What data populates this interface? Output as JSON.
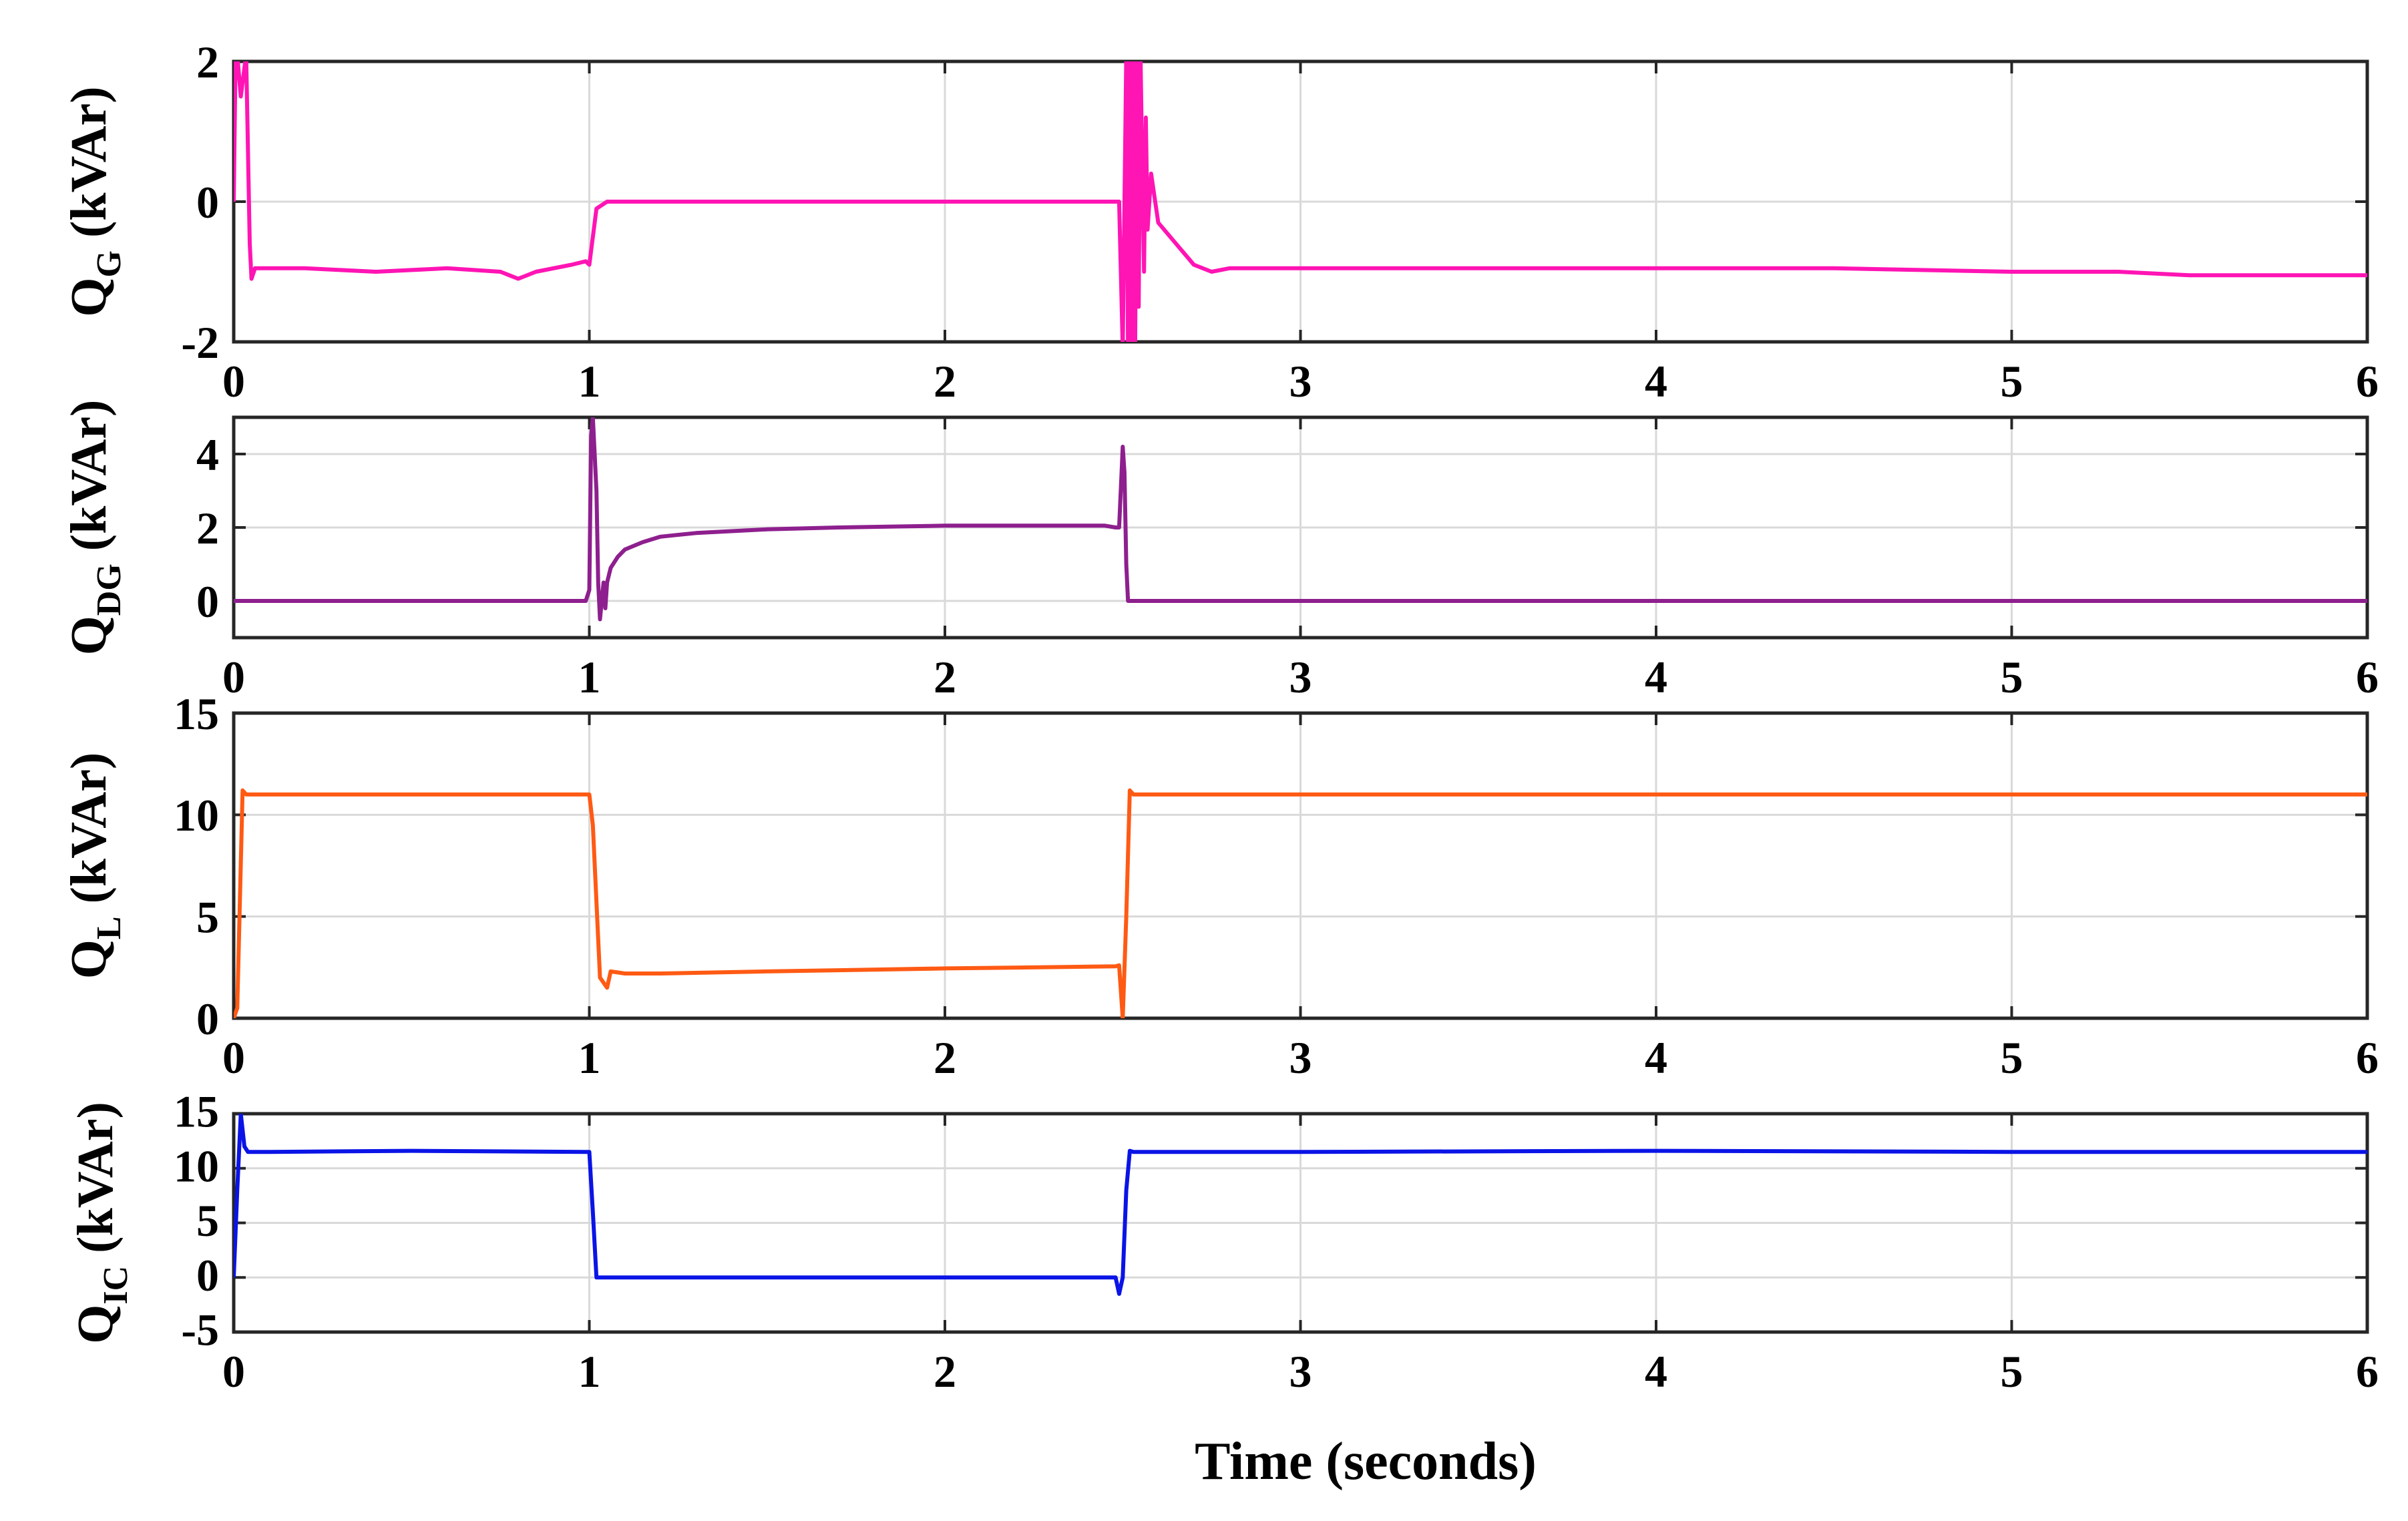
{
  "chart_data": [
    {
      "type": "line",
      "ylabel_main": "Q",
      "ylabel_sub": "G",
      "ylabel_unit": " (kVAr)",
      "xlim": [
        0,
        6
      ],
      "ylim": [
        -2,
        2
      ],
      "xticks": [
        "0",
        "1",
        "2",
        "3",
        "4",
        "5",
        "6"
      ],
      "xtick_values": [
        0,
        1,
        2,
        3,
        4,
        5,
        6
      ],
      "ytick_values": [
        -2,
        0,
        2
      ],
      "ytick_labels": [
        "-2",
        "0",
        "2"
      ],
      "color": "#ff14b4",
      "series": [
        {
          "x": [
            0,
            0.005,
            0.01,
            0.02,
            0.035,
            0.045,
            0.05,
            0.06,
            0.2,
            0.4,
            0.6,
            0.75,
            0.8,
            0.85,
            0.95,
            0.99,
            1.0,
            1.02,
            1.05,
            1.5,
            2.0,
            2.45,
            2.49,
            2.5,
            2.51,
            2.515,
            2.52,
            2.525,
            2.53,
            2.535,
            2.54,
            2.545,
            2.55,
            2.555,
            2.56,
            2.565,
            2.57,
            2.58,
            2.6,
            2.65,
            2.7,
            2.75,
            2.8,
            3.0,
            3.5,
            4.0,
            4.5,
            5.0,
            5.3,
            5.5,
            6.0
          ],
          "y": [
            0,
            2,
            2.1,
            1.5,
            2.1,
            -0.6,
            -1.1,
            -0.95,
            -0.95,
            -1.0,
            -0.95,
            -1.0,
            -1.1,
            -1.0,
            -0.9,
            -0.85,
            -0.9,
            -0.1,
            0,
            0,
            0,
            0,
            0,
            -2.1,
            2.1,
            -2.1,
            2.1,
            -2.1,
            2.1,
            -2.1,
            2.1,
            -1.5,
            2.1,
            0.5,
            -1.0,
            1.2,
            -0.4,
            0.4,
            -0.3,
            -0.6,
            -0.9,
            -1.0,
            -0.95,
            -0.95,
            -0.95,
            -0.95,
            -0.95,
            -1.0,
            -1.0,
            -1.05,
            -1.05
          ]
        }
      ]
    },
    {
      "type": "line",
      "ylabel_main": "Q",
      "ylabel_sub": "DG",
      "ylabel_unit": " (kVAr)",
      "xlim": [
        0,
        6
      ],
      "ylim": [
        -1,
        5
      ],
      "xticks": [
        "0",
        "1",
        "2",
        "3",
        "4",
        "5",
        "6"
      ],
      "xtick_values": [
        0,
        1,
        2,
        3,
        4,
        5,
        6
      ],
      "ytick_values": [
        0,
        2,
        4
      ],
      "ytick_labels": [
        "0",
        "2",
        "4"
      ],
      "color": "#8e1f8e",
      "series": [
        {
          "x": [
            0,
            0.5,
            0.99,
            1.0,
            1.005,
            1.01,
            1.02,
            1.025,
            1.03,
            1.04,
            1.045,
            1.05,
            1.06,
            1.08,
            1.1,
            1.15,
            1.2,
            1.3,
            1.4,
            1.5,
            1.7,
            2.0,
            2.2,
            2.4,
            2.45,
            2.48,
            2.49,
            2.5,
            2.505,
            2.51,
            2.515,
            2.52,
            3.0,
            4.0,
            5.0,
            6.0
          ],
          "y": [
            0,
            0,
            0,
            0.3,
            4.5,
            5.0,
            3.0,
            0.5,
            -0.5,
            0.5,
            -0.2,
            0.5,
            0.9,
            1.2,
            1.4,
            1.6,
            1.75,
            1.85,
            1.9,
            1.95,
            2.0,
            2.05,
            2.05,
            2.05,
            2.05,
            2.0,
            2.0,
            4.2,
            3.5,
            1.0,
            0,
            0,
            0,
            0,
            0,
            0
          ]
        }
      ]
    },
    {
      "type": "line",
      "ylabel_main": "Q",
      "ylabel_sub": "L",
      "ylabel_unit": " (kVAr)",
      "xlim": [
        0,
        6
      ],
      "ylim": [
        0,
        15
      ],
      "xticks": [
        "0",
        "1",
        "2",
        "3",
        "4",
        "5",
        "6"
      ],
      "xtick_values": [
        0,
        1,
        2,
        3,
        4,
        5,
        6
      ],
      "ytick_values": [
        0,
        5,
        10,
        15
      ],
      "ytick_labels": [
        "0",
        "5",
        "10",
        "15"
      ],
      "color": "#ff5a14",
      "series": [
        {
          "x": [
            0,
            0.01,
            0.025,
            0.035,
            0.05,
            0.1,
            0.5,
            0.99,
            1.0,
            1.01,
            1.03,
            1.05,
            1.06,
            1.1,
            1.2,
            1.5,
            2.0,
            2.48,
            2.49,
            2.5,
            2.51,
            2.52,
            2.53,
            2.6,
            3.0,
            4.0,
            5.0,
            6.0
          ],
          "y": [
            0,
            0.5,
            11.2,
            11.0,
            11.0,
            11.0,
            11.0,
            11.0,
            11.0,
            9.5,
            2.0,
            1.5,
            2.3,
            2.2,
            2.2,
            2.3,
            2.45,
            2.55,
            2.6,
            0,
            5.0,
            11.2,
            11.0,
            11.0,
            11.0,
            11.0,
            11.0,
            11.0
          ]
        }
      ]
    },
    {
      "type": "line",
      "ylabel_main": "Q",
      "ylabel_sub": "IC",
      "ylabel_unit": " (kVAr)",
      "xlim": [
        0,
        6
      ],
      "ylim": [
        -5,
        15
      ],
      "xticks": [
        "0",
        "1",
        "2",
        "3",
        "4",
        "5",
        "6"
      ],
      "xtick_values": [
        0,
        1,
        2,
        3,
        4,
        5,
        6
      ],
      "ytick_values": [
        -5,
        0,
        5,
        10,
        15
      ],
      "ytick_labels": [
        "-5",
        "0",
        "5",
        "10",
        "15"
      ],
      "color": "#0a14e6",
      "series": [
        {
          "x": [
            0,
            0.01,
            0.02,
            0.03,
            0.04,
            0.05,
            0.1,
            0.5,
            0.99,
            1.0,
            1.01,
            1.02,
            1.5,
            2.0,
            2.48,
            2.49,
            2.5,
            2.51,
            2.52,
            2.53,
            2.6,
            3.0,
            4.0,
            5.0,
            6.0
          ],
          "y": [
            0,
            8,
            15,
            12,
            11.5,
            11.5,
            11.5,
            11.6,
            11.5,
            11.5,
            6,
            0,
            0,
            0,
            0,
            -1.5,
            0,
            8,
            11.6,
            11.5,
            11.5,
            11.5,
            11.6,
            11.5,
            11.5
          ]
        }
      ]
    }
  ],
  "xlabel": "Time (seconds)"
}
